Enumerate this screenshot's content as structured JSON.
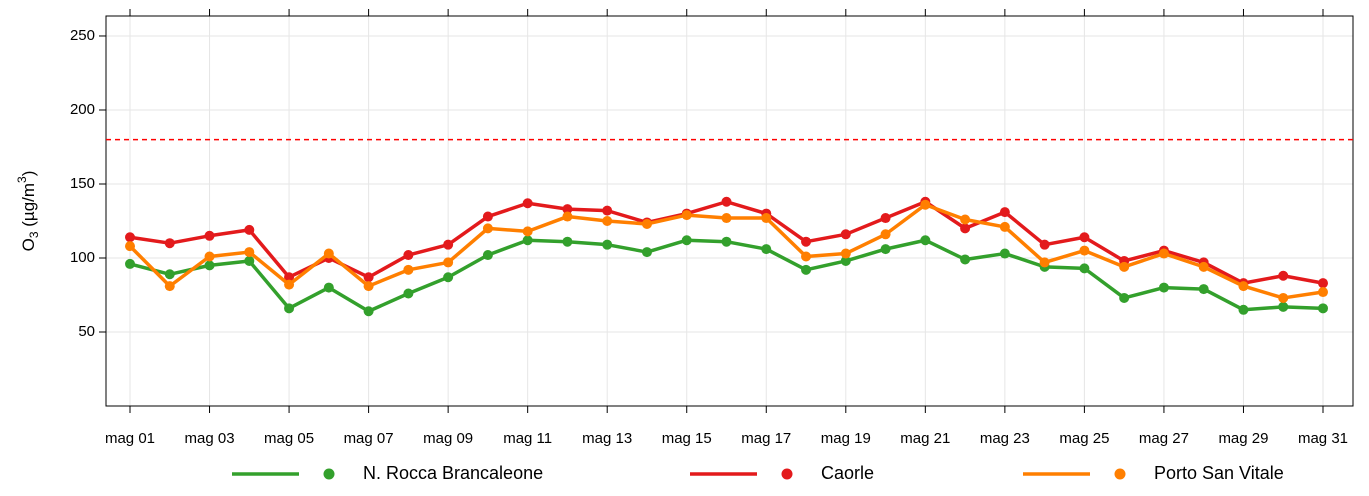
{
  "chart_data": {
    "type": "line",
    "y_label": {
      "base": "O",
      "sub": "3",
      "mid": " (µg/m",
      "sup": "3",
      "end": ")"
    },
    "categories": [
      "mag 01",
      null,
      "mag 03",
      null,
      "mag 05",
      null,
      "mag 07",
      null,
      "mag 09",
      null,
      "mag 11",
      null,
      "mag 13",
      null,
      "mag 15",
      null,
      "mag 17",
      null,
      "mag 19",
      null,
      "mag 21",
      null,
      "mag 23",
      null,
      "mag 25",
      null,
      "mag 27",
      null,
      "mag 29",
      null,
      "mag 31"
    ],
    "series": [
      {
        "name": "N. Rocca Brancaleone",
        "color": "#33a02c",
        "values": [
          96,
          89,
          95,
          98,
          66,
          80,
          64,
          76,
          87,
          102,
          112,
          111,
          109,
          104,
          112,
          111,
          106,
          92,
          98,
          106,
          112,
          99,
          103,
          94,
          93,
          73,
          80,
          79,
          65,
          67,
          66
        ]
      },
      {
        "name": "Caorle",
        "color": "#e31a1c",
        "values": [
          114,
          110,
          115,
          119,
          87,
          100,
          87,
          102,
          109,
          128,
          137,
          133,
          132,
          124,
          130,
          138,
          130,
          111,
          116,
          127,
          138,
          120,
          131,
          109,
          114,
          98,
          105,
          97,
          83,
          88,
          83
        ]
      },
      {
        "name": "Porto San Vitale",
        "color": "#ff7f00",
        "values": [
          108,
          81,
          101,
          104,
          82,
          103,
          81,
          92,
          97,
          120,
          118,
          128,
          125,
          123,
          129,
          127,
          127,
          101,
          103,
          116,
          136,
          126,
          121,
          97,
          105,
          94,
          103,
          94,
          81,
          73,
          77
        ]
      }
    ],
    "reference_line": {
      "value": 180,
      "color": "#ff0000"
    },
    "ylim": [
      0,
      263.5
    ],
    "yticks": [
      50,
      100,
      150,
      200,
      250
    ],
    "grid": true,
    "legend": "bottom"
  }
}
